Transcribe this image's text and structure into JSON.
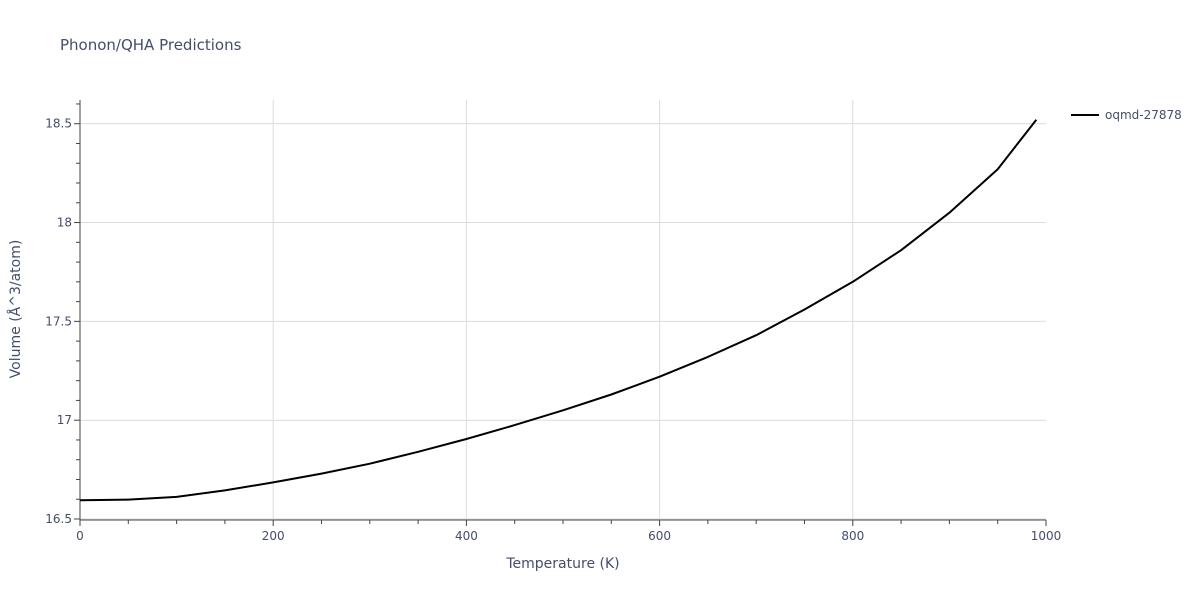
{
  "chart_data": {
    "type": "line",
    "title": "Phonon/QHA Predictions",
    "xlabel": "Temperature (K)",
    "ylabel": "Volume (Å^3/atom)",
    "xlim": [
      0,
      1000
    ],
    "ylim": [
      16.495,
      18.62
    ],
    "x_ticks": [
      0,
      200,
      400,
      600,
      800,
      1000
    ],
    "x_tick_labels": [
      "0",
      "200",
      "400",
      "600",
      "800",
      "1000"
    ],
    "y_ticks": [
      16.5,
      17,
      17.5,
      18,
      18.5
    ],
    "y_tick_labels": [
      "16.5",
      "17",
      "17.5",
      "18",
      "18.5"
    ],
    "grid": true,
    "legend_position": "top-right",
    "series": [
      {
        "name": "oqmd-27878",
        "color": "#000000",
        "x": [
          0,
          50,
          100,
          150,
          200,
          250,
          300,
          350,
          400,
          450,
          500,
          550,
          600,
          650,
          700,
          750,
          800,
          850,
          900,
          950,
          990
        ],
        "y": [
          16.595,
          16.598,
          16.612,
          16.645,
          16.685,
          16.73,
          16.78,
          16.84,
          16.905,
          16.975,
          17.05,
          17.13,
          17.22,
          17.32,
          17.43,
          17.56,
          17.7,
          17.86,
          18.05,
          18.27,
          18.52
        ]
      }
    ]
  }
}
